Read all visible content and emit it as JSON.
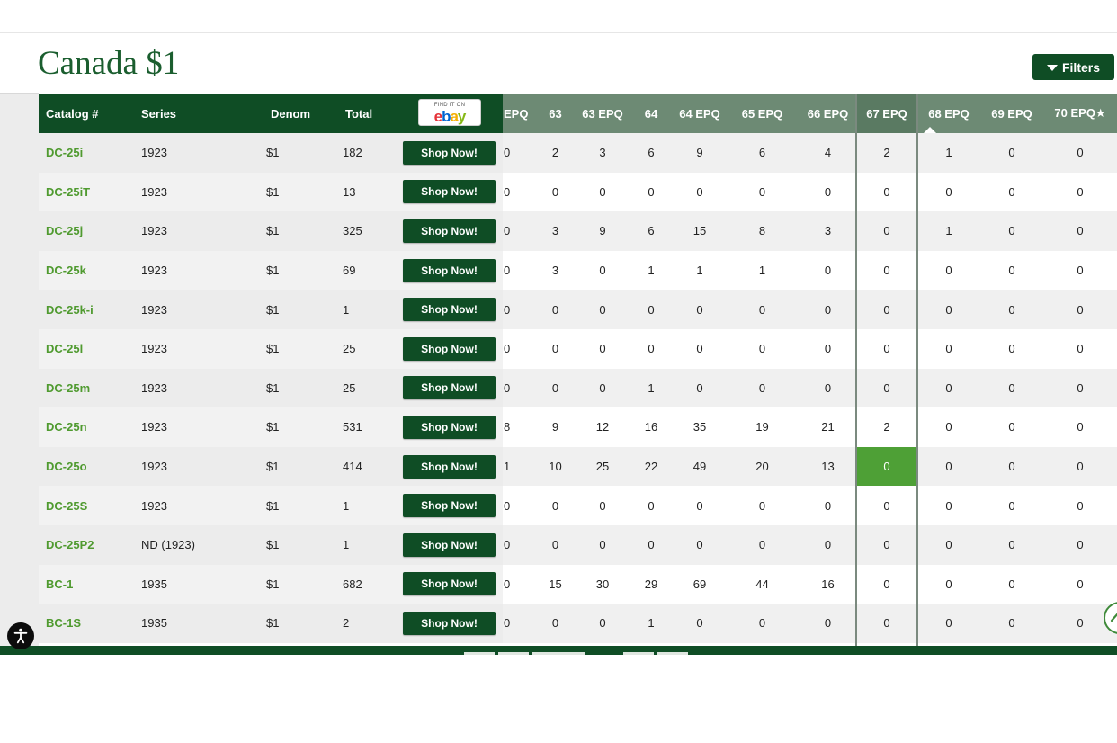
{
  "page": {
    "title": "Canada $1"
  },
  "toolbar": {
    "filters_label": "Filters"
  },
  "ebay": {
    "find_it_on": "FIND IT ON",
    "logo": [
      "e",
      "b",
      "a",
      "y"
    ]
  },
  "table": {
    "fixed_headers": {
      "catalog": "Catalog #",
      "series": "Series",
      "denom": "Denom",
      "total": "Total"
    },
    "grade_headers": [
      "EPQ",
      "63",
      "63 EPQ",
      "64",
      "64 EPQ",
      "65 EPQ",
      "66 EPQ",
      "67 EPQ",
      "68 EPQ",
      "69 EPQ",
      "70 EPQ★"
    ],
    "selected_grade": "67 EPQ",
    "shop_label": "Shop Now!",
    "rows": [
      {
        "catalog": "DC-25i",
        "series": "1923",
        "denom": "$1",
        "total": "182",
        "grades": [
          "0",
          "2",
          "3",
          "6",
          "9",
          "6",
          "4",
          "2",
          "1",
          "0",
          "0"
        ]
      },
      {
        "catalog": "DC-25iT",
        "series": "1923",
        "denom": "$1",
        "total": "13",
        "grades": [
          "0",
          "0",
          "0",
          "0",
          "0",
          "0",
          "0",
          "0",
          "0",
          "0",
          "0"
        ]
      },
      {
        "catalog": "DC-25j",
        "series": "1923",
        "denom": "$1",
        "total": "325",
        "grades": [
          "0",
          "3",
          "9",
          "6",
          "15",
          "8",
          "3",
          "0",
          "1",
          "0",
          "0"
        ]
      },
      {
        "catalog": "DC-25k",
        "series": "1923",
        "denom": "$1",
        "total": "69",
        "grades": [
          "0",
          "3",
          "0",
          "1",
          "1",
          "1",
          "0",
          "0",
          "0",
          "0",
          "0"
        ]
      },
      {
        "catalog": "DC-25k-i",
        "series": "1923",
        "denom": "$1",
        "total": "1",
        "grades": [
          "0",
          "0",
          "0",
          "0",
          "0",
          "0",
          "0",
          "0",
          "0",
          "0",
          "0"
        ]
      },
      {
        "catalog": "DC-25l",
        "series": "1923",
        "denom": "$1",
        "total": "25",
        "grades": [
          "0",
          "0",
          "0",
          "0",
          "0",
          "0",
          "0",
          "0",
          "0",
          "0",
          "0"
        ]
      },
      {
        "catalog": "DC-25m",
        "series": "1923",
        "denom": "$1",
        "total": "25",
        "grades": [
          "0",
          "0",
          "0",
          "1",
          "0",
          "0",
          "0",
          "0",
          "0",
          "0",
          "0"
        ]
      },
      {
        "catalog": "DC-25n",
        "series": "1923",
        "denom": "$1",
        "total": "531",
        "grades": [
          "8",
          "9",
          "12",
          "16",
          "35",
          "19",
          "21",
          "2",
          "0",
          "0",
          "0"
        ]
      },
      {
        "catalog": "DC-25o",
        "series": "1923",
        "denom": "$1",
        "total": "414",
        "grades": [
          "1",
          "10",
          "25",
          "22",
          "49",
          "20",
          "13",
          "0",
          "0",
          "0",
          "0"
        ],
        "highlight_grade_index": 7
      },
      {
        "catalog": "DC-25S",
        "series": "1923",
        "denom": "$1",
        "total": "1",
        "grades": [
          "0",
          "0",
          "0",
          "0",
          "0",
          "0",
          "0",
          "0",
          "0",
          "0",
          "0"
        ]
      },
      {
        "catalog": "DC-25P2",
        "series": "ND (1923)",
        "denom": "$1",
        "total": "1",
        "grades": [
          "0",
          "0",
          "0",
          "0",
          "0",
          "0",
          "0",
          "0",
          "0",
          "0",
          "0"
        ]
      },
      {
        "catalog": "BC-1",
        "series": "1935",
        "denom": "$1",
        "total": "682",
        "grades": [
          "0",
          "15",
          "30",
          "29",
          "69",
          "44",
          "16",
          "0",
          "0",
          "0",
          "0"
        ]
      },
      {
        "catalog": "BC-1S",
        "series": "1935",
        "denom": "$1",
        "total": "2",
        "grades": [
          "0",
          "0",
          "0",
          "1",
          "0",
          "0",
          "0",
          "0",
          "0",
          "0",
          "0"
        ]
      }
    ]
  },
  "colors": {
    "brand_green": "#0f4d25",
    "catalog_link": "#4f9a2f",
    "highlight_cell": "#4ea036",
    "grade_header": "#6d8a74",
    "title": "#1b5e2f"
  },
  "icons": {
    "filters": "funnel-icon",
    "accessibility": "accessibility-icon",
    "scroll_top": "chevron-up-icon"
  }
}
